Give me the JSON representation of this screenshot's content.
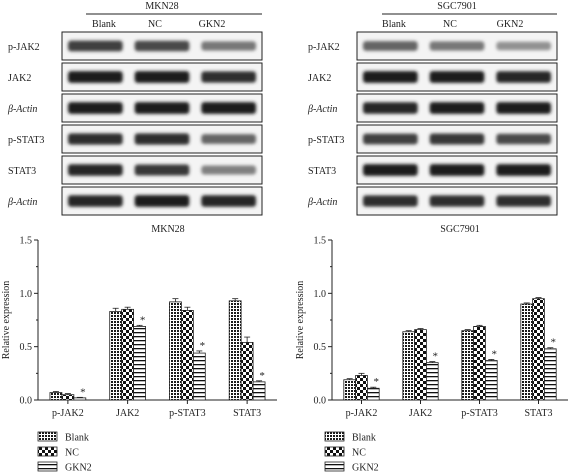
{
  "blots": [
    {
      "cell_line": "MKN28",
      "lanes": [
        "Blank",
        "NC",
        "GKN2"
      ],
      "rows": [
        {
          "label": "p-JAK2",
          "intensity": [
            0.75,
            0.7,
            0.45
          ]
        },
        {
          "label": "JAK2",
          "intensity": [
            0.95,
            0.95,
            0.85
          ]
        },
        {
          "label": "β-Actin",
          "intensity": [
            0.95,
            0.95,
            0.95
          ]
        },
        {
          "label": "p-STAT3",
          "intensity": [
            0.85,
            0.85,
            0.55
          ]
        },
        {
          "label": "STAT3",
          "intensity": [
            0.9,
            0.8,
            0.4
          ]
        },
        {
          "label": "β-Actin",
          "intensity": [
            0.9,
            0.95,
            0.9
          ]
        }
      ]
    },
    {
      "cell_line": "SGC7901",
      "lanes": [
        "Blank",
        "NC",
        "GKN2"
      ],
      "rows": [
        {
          "label": "p-JAK2",
          "intensity": [
            0.55,
            0.45,
            0.3
          ]
        },
        {
          "label": "JAK2",
          "intensity": [
            0.95,
            0.95,
            0.9
          ]
        },
        {
          "label": "β-Actin",
          "intensity": [
            0.9,
            0.95,
            0.95
          ]
        },
        {
          "label": "p-STAT3",
          "intensity": [
            0.75,
            0.8,
            0.7
          ]
        },
        {
          "label": "STAT3",
          "intensity": [
            0.95,
            0.95,
            0.95
          ]
        },
        {
          "label": "β-Actin",
          "intensity": [
            0.85,
            0.85,
            0.85
          ]
        }
      ]
    }
  ],
  "legend": [
    {
      "name": "Blank",
      "pattern": "dense-dots"
    },
    {
      "name": "NC",
      "pattern": "checker"
    },
    {
      "name": "GKN2",
      "pattern": "horizontal-lines"
    }
  ],
  "chart_data": [
    {
      "type": "bar",
      "title": "MKN28",
      "xlabel": "",
      "ylabel": "Relative expression",
      "ylim": [
        0,
        1.5
      ],
      "yticks": [
        "0.0",
        "0.5",
        "1.0",
        "1.5"
      ],
      "categories": [
        "p-JAK2",
        "JAK2",
        "p-STAT3",
        "STAT3"
      ],
      "series": [
        {
          "name": "Blank",
          "values": [
            0.07,
            0.83,
            0.92,
            0.93
          ],
          "errors": [
            0.01,
            0.03,
            0.03,
            0.02
          ]
        },
        {
          "name": "NC",
          "values": [
            0.05,
            0.85,
            0.84,
            0.54
          ],
          "errors": [
            0.01,
            0.02,
            0.03,
            0.05
          ]
        },
        {
          "name": "GKN2",
          "values": [
            0.02,
            0.69,
            0.44,
            0.17
          ],
          "errors": [
            0.005,
            0.01,
            0.02,
            0.01
          ]
        }
      ],
      "significance": [
        {
          "category": "p-JAK2",
          "series": "GKN2",
          "mark": "*"
        },
        {
          "category": "JAK2",
          "series": "GKN2",
          "mark": "*"
        },
        {
          "category": "p-STAT3",
          "series": "GKN2",
          "mark": "*"
        },
        {
          "category": "STAT3",
          "series": "GKN2",
          "mark": "*"
        }
      ],
      "grid": false,
      "legend_position": "bottom-left"
    },
    {
      "type": "bar",
      "title": "SGC7901",
      "xlabel": "",
      "ylabel": "Relative expression",
      "ylim": [
        0,
        1.5
      ],
      "yticks": [
        "0.0",
        "0.5",
        "1.0",
        "1.5"
      ],
      "categories": [
        "p-JAK2",
        "JAK2",
        "p-STAT3",
        "STAT3"
      ],
      "series": [
        {
          "name": "Blank",
          "values": [
            0.19,
            0.64,
            0.65,
            0.9
          ],
          "errors": [
            0.01,
            0.01,
            0.01,
            0.01
          ]
        },
        {
          "name": "NC",
          "values": [
            0.23,
            0.66,
            0.69,
            0.95
          ],
          "errors": [
            0.02,
            0.01,
            0.01,
            0.01
          ]
        },
        {
          "name": "GKN2",
          "values": [
            0.11,
            0.35,
            0.37,
            0.48
          ],
          "errors": [
            0.01,
            0.01,
            0.01,
            0.01
          ]
        }
      ],
      "significance": [
        {
          "category": "p-JAK2",
          "series": "GKN2",
          "mark": "*"
        },
        {
          "category": "JAK2",
          "series": "GKN2",
          "mark": "*"
        },
        {
          "category": "p-STAT3",
          "series": "GKN2",
          "mark": "*"
        },
        {
          "category": "STAT3",
          "series": "GKN2",
          "mark": "*"
        }
      ],
      "grid": false,
      "legend_position": "bottom-left"
    }
  ]
}
